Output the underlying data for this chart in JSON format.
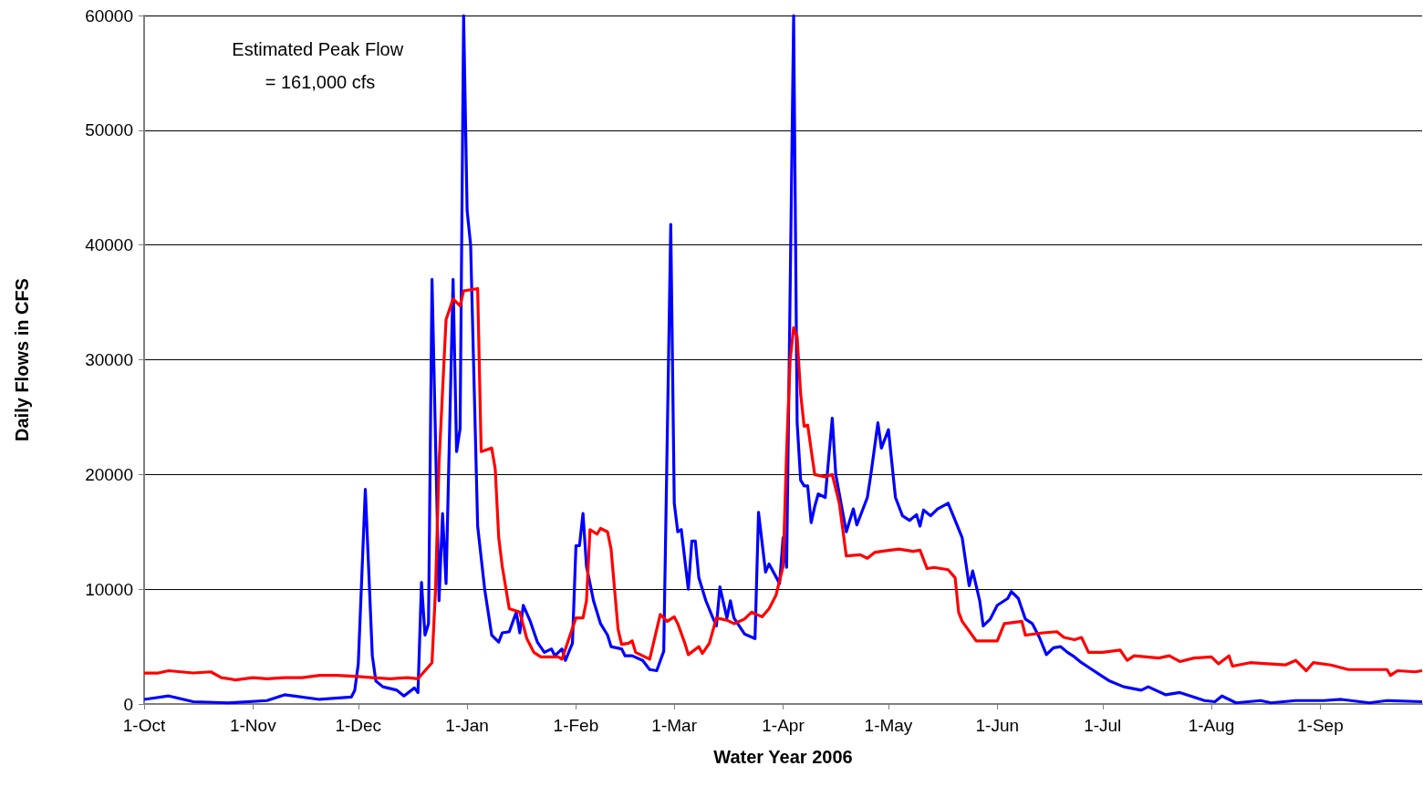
{
  "chart_data": {
    "type": "line",
    "xlabel": "Water Year 2006",
    "ylabel": "Daily Flows in CFS",
    "annotations": [
      "Estimated Peak Flow = 161,000 cfs"
    ],
    "xlim": [
      "2005-10-01",
      "2006-09-30"
    ],
    "xticks": [
      {
        "value": "2005-10-01",
        "label": "1-Oct"
      },
      {
        "value": "2005-11-01",
        "label": "1-Nov"
      },
      {
        "value": "2005-12-01",
        "label": "1-Dec"
      },
      {
        "value": "2006-01-01",
        "label": "1-Jan"
      },
      {
        "value": "2006-02-01",
        "label": "1-Feb"
      },
      {
        "value": "2006-03-01",
        "label": "1-Mar"
      },
      {
        "value": "2006-04-01",
        "label": "1-Apr"
      },
      {
        "value": "2006-05-01",
        "label": "1-May"
      },
      {
        "value": "2006-06-01",
        "label": "1-Jun"
      },
      {
        "value": "2006-07-01",
        "label": "1-Jul"
      },
      {
        "value": "2006-08-01",
        "label": "1-Aug"
      },
      {
        "value": "2006-09-01",
        "label": "1-Sep"
      }
    ],
    "ylim": [
      0,
      60000
    ],
    "yticks": [
      0,
      10000,
      20000,
      30000,
      40000,
      50000,
      60000
    ],
    "grid": "y",
    "marker": "none",
    "line_style": "solid",
    "series": [
      {
        "color": "#0000ff",
        "x": [
          "2005-10-01",
          "2005-10-08",
          "2005-10-15",
          "2005-10-25",
          "2005-11-05",
          "2005-11-10",
          "2005-11-20",
          "2005-11-29",
          "2005-11-30",
          "2005-12-01",
          "2005-12-03",
          "2005-12-05",
          "2005-12-06",
          "2005-12-08",
          "2005-12-12",
          "2005-12-14",
          "2005-12-17",
          "2005-12-18",
          "2005-12-19",
          "2005-12-20",
          "2005-12-21",
          "2005-12-22",
          "2005-12-24",
          "2005-12-25",
          "2005-12-26",
          "2005-12-28",
          "2005-12-29",
          "2005-12-30",
          "2005-12-31",
          "2006-01-01",
          "2006-01-02",
          "2006-01-04",
          "2006-01-06",
          "2006-01-08",
          "2006-01-10",
          "2006-01-11",
          "2006-01-13",
          "2006-01-15",
          "2006-01-16",
          "2006-01-17",
          "2006-01-19",
          "2006-01-21",
          "2006-01-23",
          "2006-01-25",
          "2006-01-26",
          "2006-01-28",
          "2006-01-29",
          "2006-01-31",
          "2006-02-01",
          "2006-02-02",
          "2006-02-03",
          "2006-02-04",
          "2006-02-06",
          "2006-02-08",
          "2006-02-10",
          "2006-02-11",
          "2006-02-14",
          "2006-02-15",
          "2006-02-17",
          "2006-02-20",
          "2006-02-22",
          "2006-02-24",
          "2006-02-26",
          "2006-02-28",
          "2006-03-01",
          "2006-03-02",
          "2006-03-03",
          "2006-03-05",
          "2006-03-06",
          "2006-03-07",
          "2006-03-08",
          "2006-03-10",
          "2006-03-12",
          "2006-03-13",
          "2006-03-14",
          "2006-03-16",
          "2006-03-17",
          "2006-03-18",
          "2006-03-21",
          "2006-03-24",
          "2006-03-25",
          "2006-03-27",
          "2006-03-28",
          "2006-03-31",
          "2006-04-01",
          "2006-04-02",
          "2006-04-04",
          "2006-04-05",
          "2006-04-06",
          "2006-04-07",
          "2006-04-08",
          "2006-04-09",
          "2006-04-10",
          "2006-04-11",
          "2006-04-13",
          "2006-04-15",
          "2006-04-16",
          "2006-04-19",
          "2006-04-21",
          "2006-04-22",
          "2006-04-25",
          "2006-04-26",
          "2006-04-28",
          "2006-04-29",
          "2006-05-01",
          "2006-05-03",
          "2006-05-05",
          "2006-05-07",
          "2006-05-09",
          "2006-05-10",
          "2006-05-11",
          "2006-05-13",
          "2006-05-15",
          "2006-05-18",
          "2006-05-20",
          "2006-05-22",
          "2006-05-24",
          "2006-05-25",
          "2006-05-27",
          "2006-05-28",
          "2006-05-30",
          "2006-06-01",
          "2006-06-04",
          "2006-06-05",
          "2006-06-07",
          "2006-06-09",
          "2006-06-11",
          "2006-06-13",
          "2006-06-15",
          "2006-06-17",
          "2006-06-19",
          "2006-06-21",
          "2006-06-23",
          "2006-06-25",
          "2006-06-27",
          "2006-07-01",
          "2006-07-03",
          "2006-07-07",
          "2006-07-12",
          "2006-07-14",
          "2006-07-19",
          "2006-07-23",
          "2006-07-30",
          "2006-08-02",
          "2006-08-04",
          "2006-08-08",
          "2006-08-15",
          "2006-08-18",
          "2006-08-25",
          "2006-09-02",
          "2006-09-07",
          "2006-09-15",
          "2006-09-20",
          "2006-09-30"
        ],
        "values": [
          400,
          700,
          200,
          100,
          300,
          800,
          400,
          600,
          1200,
          3500,
          18700,
          4200,
          2000,
          1500,
          1200,
          700,
          1400,
          1000,
          10600,
          6000,
          7000,
          37000,
          9000,
          16600,
          10500,
          37000,
          22000,
          24000,
          60000,
          43000,
          40000,
          15500,
          10000,
          6000,
          5400,
          6200,
          6300,
          8000,
          6200,
          8600,
          7200,
          5400,
          4500,
          4800,
          4200,
          4800,
          3800,
          5300,
          13800,
          13800,
          16600,
          12000,
          9000,
          7000,
          6000,
          5000,
          4800,
          4200,
          4200,
          3800,
          3000,
          2900,
          4600,
          41800,
          17500,
          15000,
          15200,
          10000,
          14200,
          14200,
          11000,
          9000,
          7500,
          6800,
          10200,
          7500,
          9000,
          7500,
          6100,
          5700,
          16700,
          11500,
          12200,
          10500,
          14500,
          11900,
          60000,
          24500,
          19500,
          19000,
          19000,
          15800,
          17200,
          18300,
          18000,
          24900,
          20000,
          15000,
          17000,
          15600,
          18000,
          20000,
          24500,
          22300,
          23900,
          18000,
          16400,
          16000,
          16500,
          15500,
          16900,
          16400,
          17000,
          17500,
          16000,
          14500,
          10300,
          11600,
          9000,
          6800,
          7400,
          8600,
          9200,
          9800,
          9200,
          7400,
          7000,
          5800,
          4300,
          4900,
          5000,
          4500,
          4100,
          3600,
          3200,
          2400,
          2000,
          1500,
          1200,
          1500,
          800,
          1000,
          300,
          200,
          700,
          100,
          300,
          100,
          300,
          300,
          400,
          100,
          300,
          200
        ]
      },
      {
        "color": "#ff0000",
        "x": [
          "2005-10-01",
          "2005-10-05",
          "2005-10-08",
          "2005-10-15",
          "2005-10-20",
          "2005-10-23",
          "2005-10-27",
          "2005-11-01",
          "2005-11-05",
          "2005-11-10",
          "2005-11-15",
          "2005-11-20",
          "2005-11-25",
          "2005-12-01",
          "2005-12-05",
          "2005-12-10",
          "2005-12-15",
          "2005-12-18",
          "2005-12-22",
          "2005-12-23",
          "2005-12-24",
          "2005-12-26",
          "2005-12-28",
          "2005-12-30",
          "2005-12-31",
          "2006-01-04",
          "2006-01-05",
          "2006-01-08",
          "2006-01-09",
          "2006-01-10",
          "2006-01-11",
          "2006-01-13",
          "2006-01-16",
          "2006-01-18",
          "2006-01-20",
          "2006-01-22",
          "2006-01-27",
          "2006-01-28",
          "2006-02-01",
          "2006-02-03",
          "2006-02-04",
          "2006-02-05",
          "2006-02-07",
          "2006-02-08",
          "2006-02-10",
          "2006-02-11",
          "2006-02-13",
          "2006-02-14",
          "2006-02-16",
          "2006-02-17",
          "2006-02-18",
          "2006-02-22",
          "2006-02-25",
          "2006-02-27",
          "2006-03-01",
          "2006-03-02",
          "2006-03-04",
          "2006-03-05",
          "2006-03-08",
          "2006-03-09",
          "2006-03-11",
          "2006-03-13",
          "2006-03-16",
          "2006-03-18",
          "2006-03-21",
          "2006-03-23",
          "2006-03-26",
          "2006-03-28",
          "2006-03-30",
          "2006-04-01",
          "2006-04-02",
          "2006-04-03",
          "2006-04-04",
          "2006-04-05",
          "2006-04-06",
          "2006-04-07",
          "2006-04-08",
          "2006-04-10",
          "2006-04-13",
          "2006-04-15",
          "2006-04-17",
          "2006-04-19",
          "2006-04-23",
          "2006-04-25",
          "2006-04-27",
          "2006-04-29",
          "2006-05-04",
          "2006-05-08",
          "2006-05-10",
          "2006-05-12",
          "2006-05-14",
          "2006-05-18",
          "2006-05-20",
          "2006-05-21",
          "2006-05-22",
          "2006-05-26",
          "2006-06-01",
          "2006-06-03",
          "2006-06-08",
          "2006-06-09",
          "2006-06-14",
          "2006-06-18",
          "2006-06-20",
          "2006-06-23",
          "2006-06-25",
          "2006-06-27",
          "2006-07-01",
          "2006-07-06",
          "2006-07-08",
          "2006-07-10",
          "2006-07-17",
          "2006-07-20",
          "2006-07-23",
          "2006-07-27",
          "2006-08-01",
          "2006-08-03",
          "2006-08-06",
          "2006-08-07",
          "2006-08-12",
          "2006-08-17",
          "2006-08-22",
          "2006-08-25",
          "2006-08-28",
          "2006-08-30",
          "2006-09-04",
          "2006-09-09",
          "2006-09-20",
          "2006-09-21",
          "2006-09-23",
          "2006-09-28",
          "2006-09-30"
        ],
        "values": [
          2700,
          2700,
          2900,
          2700,
          2800,
          2300,
          2100,
          2300,
          2200,
          2300,
          2300,
          2500,
          2500,
          2400,
          2300,
          2200,
          2300,
          2200,
          3600,
          10000,
          21000,
          33500,
          35300,
          34700,
          36000,
          36200,
          22000,
          22300,
          20500,
          14500,
          12000,
          8300,
          8000,
          5700,
          4500,
          4100,
          4100,
          3900,
          7500,
          7500,
          9000,
          15200,
          14800,
          15300,
          15000,
          13500,
          6500,
          5200,
          5300,
          5500,
          4500,
          3900,
          7800,
          7200,
          7600,
          7000,
          5300,
          4300,
          5000,
          4400,
          5300,
          7500,
          7300,
          7000,
          7400,
          8000,
          7600,
          8300,
          9500,
          12000,
          22000,
          30000,
          32800,
          32000,
          27000,
          24200,
          24300,
          20000,
          19800,
          20000,
          17500,
          12900,
          13000,
          12700,
          13200,
          13300,
          13500,
          13300,
          13400,
          11800,
          11900,
          11700,
          11000,
          8000,
          7200,
          5500,
          5500,
          7000,
          7200,
          6000,
          6200,
          6300,
          5800,
          5600,
          5800,
          4500,
          4500,
          4700,
          3800,
          4200,
          4000,
          4200,
          3700,
          4000,
          4100,
          3500,
          4200,
          3300,
          3600,
          3500,
          3400,
          3800,
          2900,
          3600,
          3400,
          3000,
          3000,
          2500,
          2900,
          2800,
          2900
        ]
      }
    ]
  }
}
